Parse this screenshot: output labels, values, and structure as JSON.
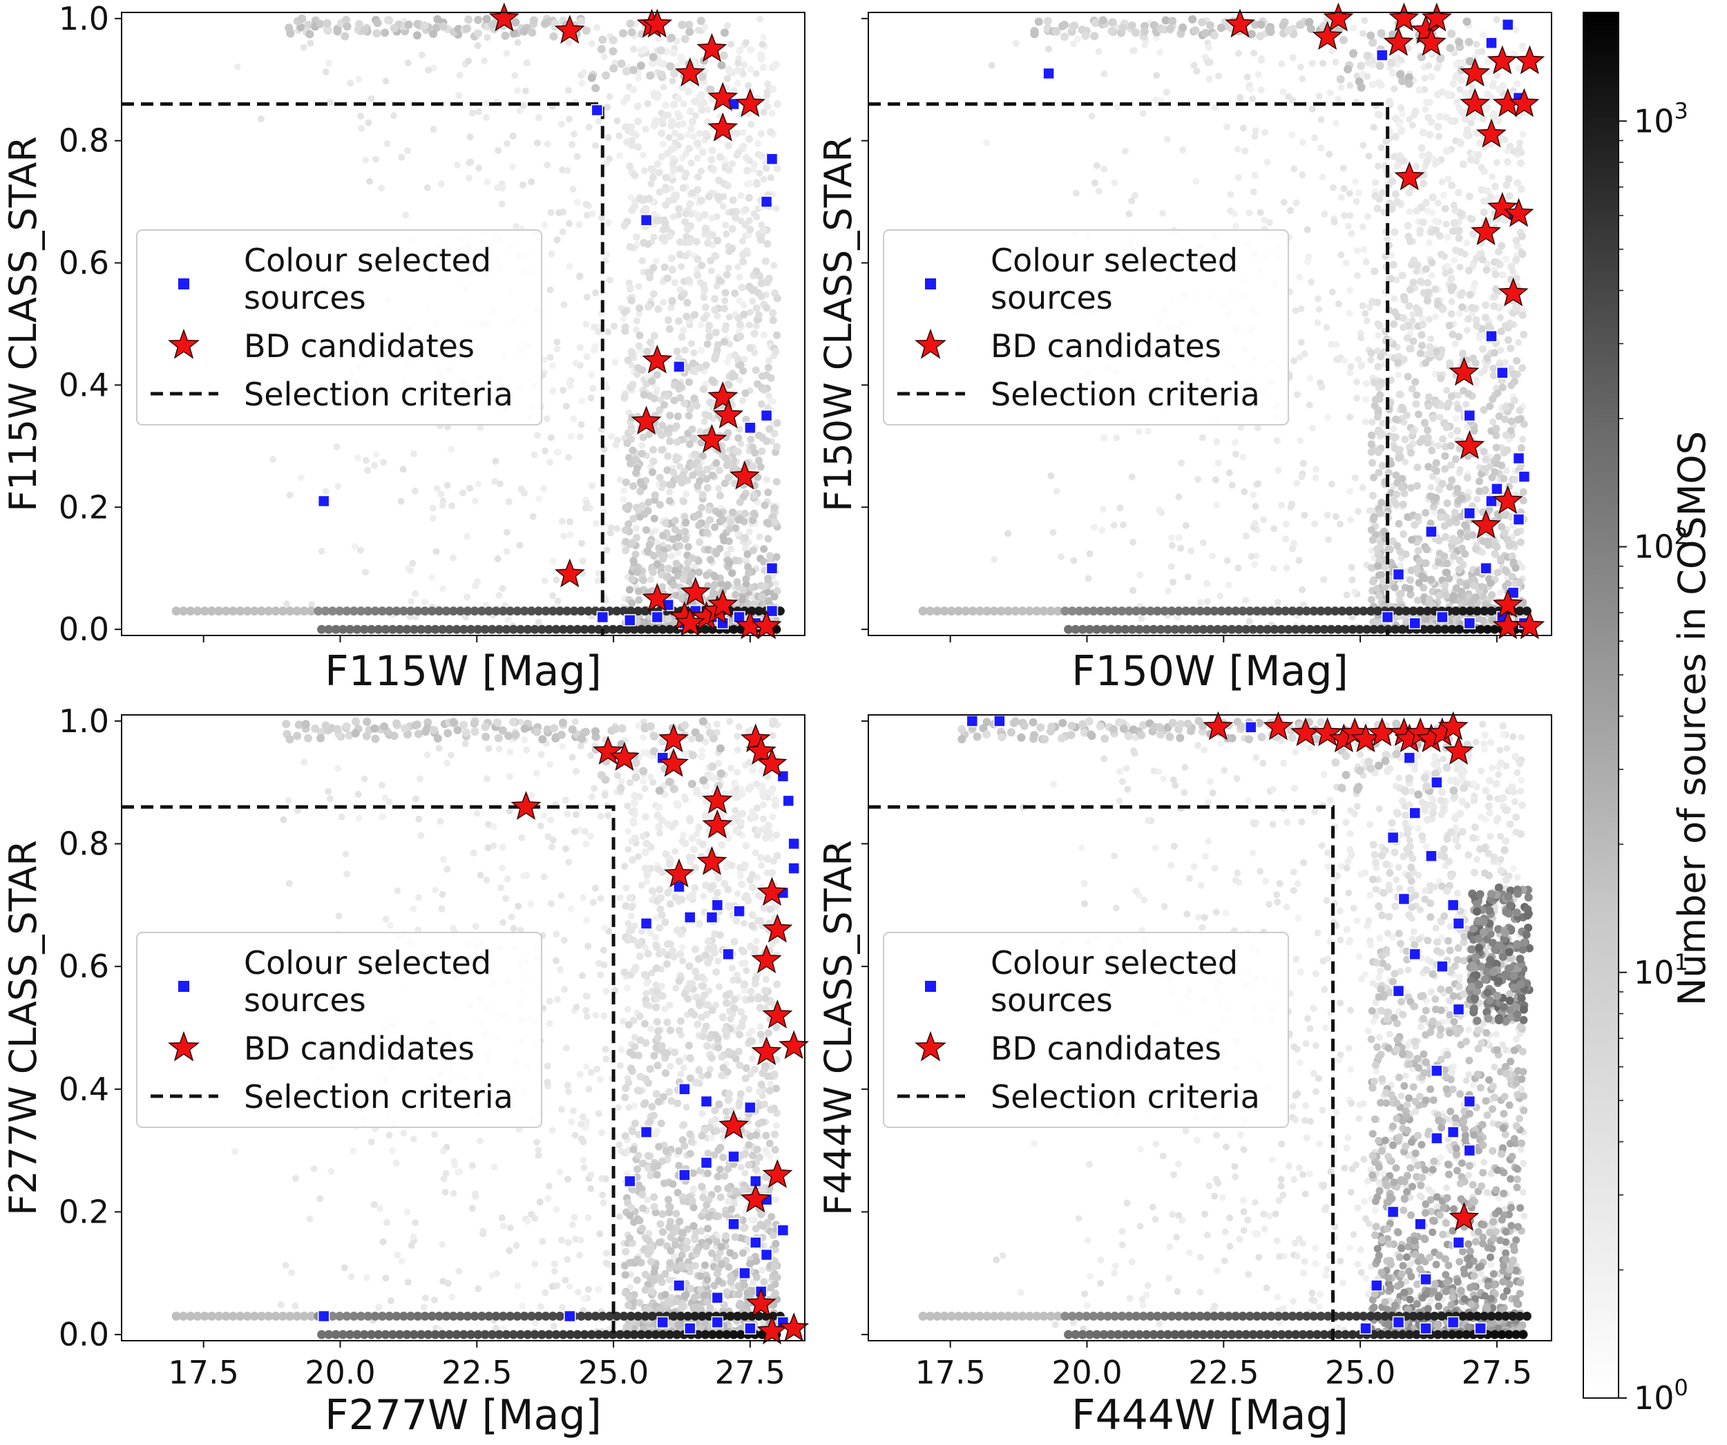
{
  "chart_data": [
    {
      "type": "scatter",
      "panel": "top-left",
      "xlabel": "F115W [Mag]",
      "ylabel": "F115W CLASS_STAR",
      "xlim": [
        16,
        28.5
      ],
      "ylim": [
        -0.01,
        1.01
      ],
      "yticks": [
        "0.0",
        "0.2",
        "0.4",
        "0.6",
        "0.8",
        "1.0"
      ],
      "xticks": [],
      "selection_criteria": {
        "mag": 24.8,
        "class_star": 0.86
      },
      "series": [
        {
          "name": "Colour selected sources",
          "color": "#1a1aff",
          "marker": "square",
          "points": [
            [
              19.7,
              0.21
            ],
            [
              24.7,
              0.85
            ],
            [
              25.6,
              0.67
            ],
            [
              26.2,
              0.43
            ],
            [
              27.2,
              0.86
            ],
            [
              27.5,
              0.33
            ],
            [
              27.8,
              0.35
            ],
            [
              27.8,
              0.7
            ],
            [
              27.9,
              0.77
            ],
            [
              27.9,
              0.1
            ],
            [
              24.8,
              0.02
            ],
            [
              25.3,
              0.015
            ],
            [
              25.8,
              0.02
            ],
            [
              26.0,
              0.04
            ],
            [
              26.3,
              0.01
            ],
            [
              26.5,
              0.03
            ],
            [
              26.8,
              0.02
            ],
            [
              27.0,
              0.01
            ],
            [
              27.3,
              0.02
            ],
            [
              27.6,
              0.01
            ],
            [
              27.9,
              0.03
            ]
          ]
        },
        {
          "name": "BD candidates",
          "color": "#ee1111",
          "marker": "star",
          "points": [
            [
              23.0,
              1.0
            ],
            [
              24.2,
              0.98
            ],
            [
              25.7,
              0.99
            ],
            [
              25.8,
              0.99
            ],
            [
              26.4,
              0.91
            ],
            [
              26.8,
              0.95
            ],
            [
              27.0,
              0.87
            ],
            [
              27.0,
              0.82
            ],
            [
              27.5,
              0.86
            ],
            [
              25.6,
              0.34
            ],
            [
              25.8,
              0.44
            ],
            [
              26.8,
              0.31
            ],
            [
              27.0,
              0.38
            ],
            [
              27.1,
              0.35
            ],
            [
              27.4,
              0.25
            ],
            [
              24.2,
              0.09
            ],
            [
              25.8,
              0.05
            ],
            [
              26.3,
              0.02
            ],
            [
              26.5,
              0.06
            ],
            [
              26.7,
              0.02
            ],
            [
              26.9,
              0.03
            ],
            [
              27.0,
              0.04
            ],
            [
              27.5,
              0.005
            ],
            [
              27.8,
              0.005
            ],
            [
              26.4,
              0.01
            ]
          ]
        }
      ]
    },
    {
      "type": "scatter",
      "panel": "top-right",
      "xlabel": "F150W [Mag]",
      "ylabel": "F150W CLASS_STAR",
      "xlim": [
        16,
        28.5
      ],
      "ylim": [
        -0.01,
        1.01
      ],
      "yticks": [],
      "xticks": [],
      "selection_criteria": {
        "mag": 25.5,
        "class_star": 0.86
      },
      "series": [
        {
          "name": "Colour selected sources",
          "color": "#1a1aff",
          "marker": "square",
          "points": [
            [
              19.3,
              0.91
            ],
            [
              25.4,
              0.94
            ],
            [
              27.7,
              0.99
            ],
            [
              27.4,
              0.96
            ],
            [
              27.9,
              0.87
            ],
            [
              27.8,
              0.68
            ],
            [
              27.4,
              0.48
            ],
            [
              27.6,
              0.42
            ],
            [
              27.0,
              0.35
            ],
            [
              27.9,
              0.28
            ],
            [
              28.0,
              0.25
            ],
            [
              27.5,
              0.23
            ],
            [
              27.4,
              0.21
            ],
            [
              27.9,
              0.18
            ],
            [
              26.3,
              0.16
            ],
            [
              27.0,
              0.19
            ],
            [
              27.3,
              0.1
            ],
            [
              27.8,
              0.06
            ],
            [
              25.7,
              0.09
            ],
            [
              25.5,
              0.02
            ],
            [
              26.0,
              0.01
            ],
            [
              26.5,
              0.02
            ],
            [
              27.0,
              0.01
            ],
            [
              27.6,
              0.02
            ],
            [
              28.0,
              0.01
            ]
          ]
        },
        {
          "name": "BD candidates",
          "color": "#ee1111",
          "marker": "star",
          "points": [
            [
              22.8,
              0.99
            ],
            [
              24.4,
              0.97
            ],
            [
              24.6,
              1.0
            ],
            [
              25.7,
              0.96
            ],
            [
              25.8,
              1.0
            ],
            [
              26.2,
              0.98
            ],
            [
              26.3,
              0.96
            ],
            [
              26.4,
              1.0
            ],
            [
              27.1,
              0.91
            ],
            [
              27.1,
              0.86
            ],
            [
              27.4,
              0.81
            ],
            [
              27.6,
              0.93
            ],
            [
              27.7,
              0.86
            ],
            [
              28.0,
              0.86
            ],
            [
              28.1,
              0.93
            ],
            [
              25.9,
              0.74
            ],
            [
              27.3,
              0.65
            ],
            [
              27.6,
              0.69
            ],
            [
              27.9,
              0.68
            ],
            [
              27.8,
              0.55
            ],
            [
              26.9,
              0.42
            ],
            [
              27.0,
              0.3
            ],
            [
              27.3,
              0.17
            ],
            [
              27.7,
              0.21
            ],
            [
              27.7,
              0.04
            ],
            [
              27.7,
              0.005
            ],
            [
              28.1,
              0.005
            ]
          ]
        }
      ]
    },
    {
      "type": "scatter",
      "panel": "bottom-left",
      "xlabel": "F277W [Mag]",
      "ylabel": "F277W CLASS_STAR",
      "xlim": [
        16,
        28.5
      ],
      "ylim": [
        -0.01,
        1.01
      ],
      "yticks": [
        "0.0",
        "0.2",
        "0.4",
        "0.6",
        "0.8",
        "1.0"
      ],
      "xticks": [
        "17.5",
        "20.0",
        "22.5",
        "25.0",
        "27.5"
      ],
      "selection_criteria": {
        "mag": 25.0,
        "class_star": 0.86
      },
      "series": [
        {
          "name": "Colour selected sources",
          "color": "#1a1aff",
          "marker": "square",
          "points": [
            [
              19.7,
              0.03
            ],
            [
              24.2,
              0.03
            ],
            [
              25.9,
              0.94
            ],
            [
              25.6,
              0.67
            ],
            [
              26.2,
              0.73
            ],
            [
              26.4,
              0.68
            ],
            [
              26.8,
              0.68
            ],
            [
              26.9,
              0.7
            ],
            [
              27.3,
              0.69
            ],
            [
              27.1,
              0.62
            ],
            [
              28.1,
              0.91
            ],
            [
              28.2,
              0.87
            ],
            [
              28.3,
              0.8
            ],
            [
              28.3,
              0.76
            ],
            [
              28.1,
              0.72
            ],
            [
              26.3,
              0.4
            ],
            [
              26.7,
              0.38
            ],
            [
              27.5,
              0.37
            ],
            [
              25.6,
              0.33
            ],
            [
              25.3,
              0.25
            ],
            [
              26.3,
              0.26
            ],
            [
              26.7,
              0.28
            ],
            [
              27.2,
              0.29
            ],
            [
              27.6,
              0.25
            ],
            [
              27.8,
              0.22
            ],
            [
              27.2,
              0.18
            ],
            [
              27.6,
              0.15
            ],
            [
              27.8,
              0.13
            ],
            [
              28.1,
              0.17
            ],
            [
              27.4,
              0.1
            ],
            [
              26.2,
              0.08
            ],
            [
              26.9,
              0.06
            ],
            [
              27.7,
              0.07
            ],
            [
              25.9,
              0.02
            ],
            [
              26.4,
              0.01
            ],
            [
              26.9,
              0.02
            ],
            [
              27.5,
              0.01
            ],
            [
              28.1,
              0.02
            ]
          ]
        },
        {
          "name": "BD candidates",
          "color": "#ee1111",
          "marker": "star",
          "points": [
            [
              23.4,
              0.86
            ],
            [
              24.9,
              0.95
            ],
            [
              25.2,
              0.94
            ],
            [
              26.1,
              0.97
            ],
            [
              26.1,
              0.93
            ],
            [
              27.6,
              0.97
            ],
            [
              27.7,
              0.95
            ],
            [
              27.9,
              0.93
            ],
            [
              26.9,
              0.87
            ],
            [
              26.9,
              0.83
            ],
            [
              26.8,
              0.77
            ],
            [
              26.2,
              0.75
            ],
            [
              27.9,
              0.72
            ],
            [
              28.0,
              0.66
            ],
            [
              27.8,
              0.61
            ],
            [
              28.0,
              0.52
            ],
            [
              27.8,
              0.46
            ],
            [
              28.3,
              0.47
            ],
            [
              27.2,
              0.34
            ],
            [
              28.0,
              0.26
            ],
            [
              27.6,
              0.22
            ],
            [
              27.7,
              0.05
            ],
            [
              27.9,
              0.005
            ],
            [
              28.3,
              0.01
            ]
          ]
        }
      ]
    },
    {
      "type": "scatter",
      "panel": "bottom-right",
      "xlabel": "F444W [Mag]",
      "ylabel": "F444W CLASS_STAR",
      "xlim": [
        16,
        28.5
      ],
      "ylim": [
        -0.01,
        1.01
      ],
      "yticks": [],
      "xticks": [
        "17.5",
        "20.0",
        "22.5",
        "25.0",
        "27.5"
      ],
      "selection_criteria": {
        "mag": 24.5,
        "class_star": 0.86
      },
      "series": [
        {
          "name": "Colour selected sources",
          "color": "#1a1aff",
          "marker": "square",
          "points": [
            [
              17.9,
              1.0
            ],
            [
              18.4,
              1.0
            ],
            [
              23.0,
              0.99
            ],
            [
              25.9,
              0.94
            ],
            [
              26.4,
              0.9
            ],
            [
              26.0,
              0.85
            ],
            [
              25.6,
              0.81
            ],
            [
              26.3,
              0.78
            ],
            [
              25.8,
              0.71
            ],
            [
              26.7,
              0.7
            ],
            [
              26.8,
              0.67
            ],
            [
              26.0,
              0.62
            ],
            [
              26.5,
              0.6
            ],
            [
              25.7,
              0.56
            ],
            [
              26.8,
              0.53
            ],
            [
              26.4,
              0.43
            ],
            [
              27.0,
              0.38
            ],
            [
              26.7,
              0.33
            ],
            [
              26.4,
              0.32
            ],
            [
              27.0,
              0.3
            ],
            [
              25.6,
              0.2
            ],
            [
              26.1,
              0.18
            ],
            [
              26.8,
              0.15
            ],
            [
              26.2,
              0.09
            ],
            [
              25.3,
              0.08
            ],
            [
              25.1,
              0.01
            ],
            [
              25.7,
              0.02
            ],
            [
              26.2,
              0.01
            ],
            [
              26.7,
              0.02
            ],
            [
              27.2,
              0.01
            ]
          ]
        },
        {
          "name": "BD candidates",
          "color": "#ee1111",
          "marker": "star",
          "points": [
            [
              22.4,
              0.99
            ],
            [
              23.5,
              0.99
            ],
            [
              24.0,
              0.98
            ],
            [
              24.4,
              0.98
            ],
            [
              24.7,
              0.97
            ],
            [
              24.9,
              0.98
            ],
            [
              25.1,
              0.97
            ],
            [
              25.4,
              0.98
            ],
            [
              25.8,
              0.98
            ],
            [
              25.9,
              0.97
            ],
            [
              26.1,
              0.98
            ],
            [
              26.3,
              0.97
            ],
            [
              26.5,
              0.98
            ],
            [
              26.7,
              0.99
            ],
            [
              26.8,
              0.95
            ],
            [
              26.9,
              0.19
            ]
          ]
        }
      ]
    }
  ],
  "colorbar": {
    "label": "Number of sources in COSMOS",
    "ticks": [
      {
        "base": "10",
        "exp": "0",
        "value": 1
      },
      {
        "base": "10",
        "exp": "1",
        "value": 10
      },
      {
        "base": "10",
        "exp": "2",
        "value": 100
      },
      {
        "base": "10",
        "exp": "3",
        "value": 1000
      }
    ],
    "range": [
      1,
      1800
    ],
    "scale": "log"
  },
  "legend": {
    "entries": [
      {
        "line1": "Colour selected",
        "line2": "sources"
      },
      {
        "line1": "BD candidates"
      },
      {
        "line1": "Selection criteria"
      }
    ]
  }
}
